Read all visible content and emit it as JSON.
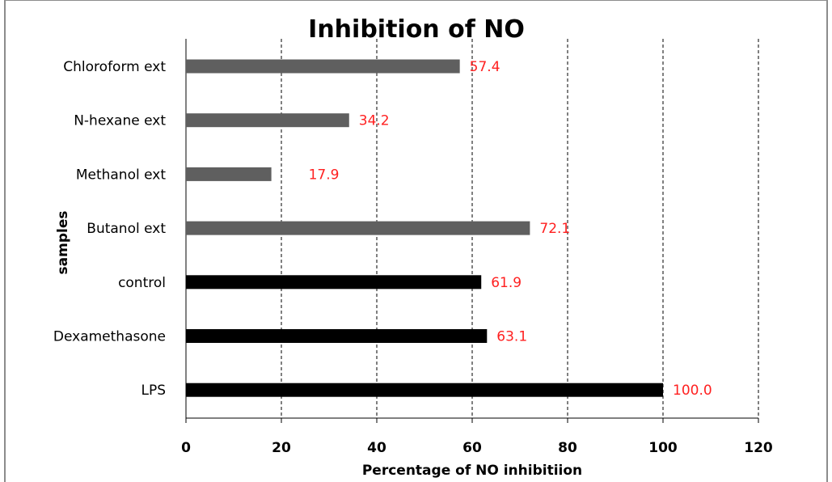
{
  "chart_data": {
    "type": "bar",
    "orientation": "horizontal",
    "title": "Inhibition of NO",
    "xlabel": "Percentage of NO inhibitiion",
    "ylabel": "samples",
    "xlim": [
      0,
      120
    ],
    "xticks": [
      0,
      20,
      40,
      60,
      80,
      100,
      120
    ],
    "grid": "vertical dashed",
    "categories": [
      "Chloroform ext",
      "N-hexane ext",
      "Methanol ext",
      "Butanol ext",
      "control",
      "Dexamethasone",
      "LPS"
    ],
    "values": [
      57.4,
      34.2,
      17.9,
      72.1,
      61.9,
      63.1,
      100.0
    ],
    "data_labels": [
      "57.4",
      "34.2",
      "17.9",
      "72.1",
      "61.9",
      "63.1",
      "100.0"
    ],
    "bar_colors": [
      "#5f5f5f",
      "#5f5f5f",
      "#5f5f5f",
      "#5f5f5f",
      "#000000",
      "#000000",
      "#000000"
    ],
    "data_label_color": "#ff2020"
  }
}
